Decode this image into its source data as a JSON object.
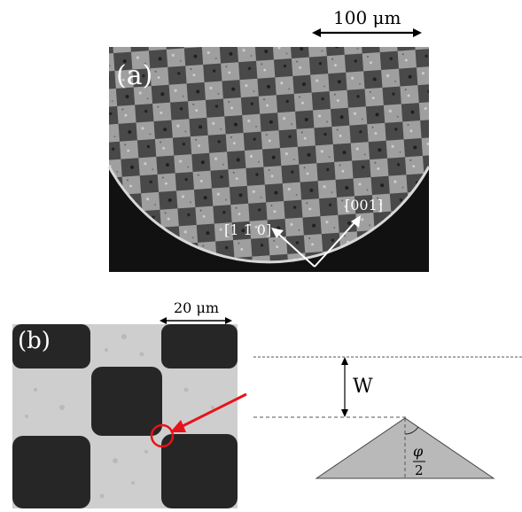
{
  "panel_a": {
    "label": "(a)",
    "scale_bar": "100 μm",
    "dir_1": "[1 1̄ 0]",
    "dir_2": "[001]"
  },
  "panel_b": {
    "label": "(b)",
    "scale_bar": "20 μm",
    "highlight_color": "#e8121a"
  },
  "diagram": {
    "w_label": "W",
    "angle_num": "φ",
    "angle_den": "2",
    "fill_color": "#b9b9b9"
  }
}
